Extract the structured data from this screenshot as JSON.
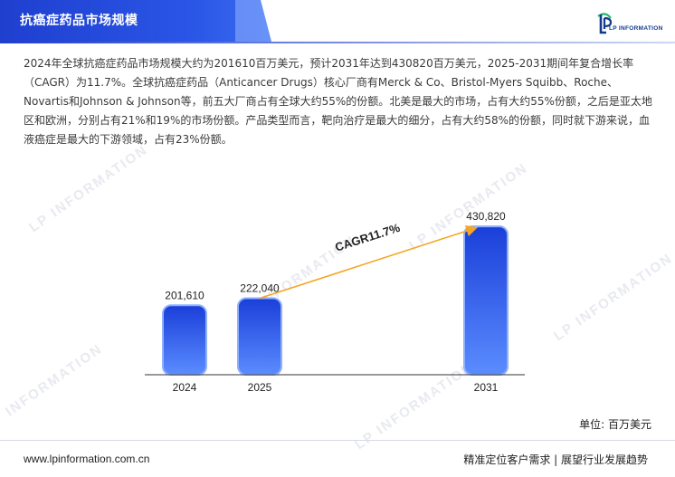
{
  "header": {
    "title": "抗癌症药品市场规模",
    "logo_text": "LP INFORMATION"
  },
  "summary": "2024年全球抗癌症药品市场规模大约为201610百万美元，预计2031年达到430820百万美元，2025-2031期间年复合增长率（CAGR）为11.7%。全球抗癌症药品（Anticancer Drugs）核心厂商有Merck & Co、Bristol-Myers Squibb、Roche、Novartis和Johnson & Johnson等，前五大厂商占有全球大约55%的份额。北美是最大的市场，占有大约55%份额，之后是亚太地区和欧洲，分别占有21%和19%的市场份额。产品类型而言，靶向治疗是最大的细分，占有大约58%的份额，同时就下游来说，血液癌症是最大的下游领域，占有23%份额。",
  "watermark": "LP INFORMATION",
  "chart_data": {
    "type": "bar",
    "categories": [
      "2024",
      "2025",
      "2031"
    ],
    "values": [
      201610,
      222040,
      430820
    ],
    "value_labels": [
      "201,610",
      "222,040",
      "430,820"
    ],
    "annotation": "CAGR11.7%",
    "unit_label": "单位: 百万美元",
    "ylim": [
      0,
      460000
    ],
    "grid": false,
    "colors": {
      "bar_top": "#1a3fd9",
      "bar_bottom": "#5b8cff",
      "arrow": "#f5a623",
      "axis": "#333333"
    }
  },
  "footer": {
    "url": "www.lpinformation.com.cn",
    "slogan": "精准定位客户需求 | 展望行业发展趋势"
  }
}
